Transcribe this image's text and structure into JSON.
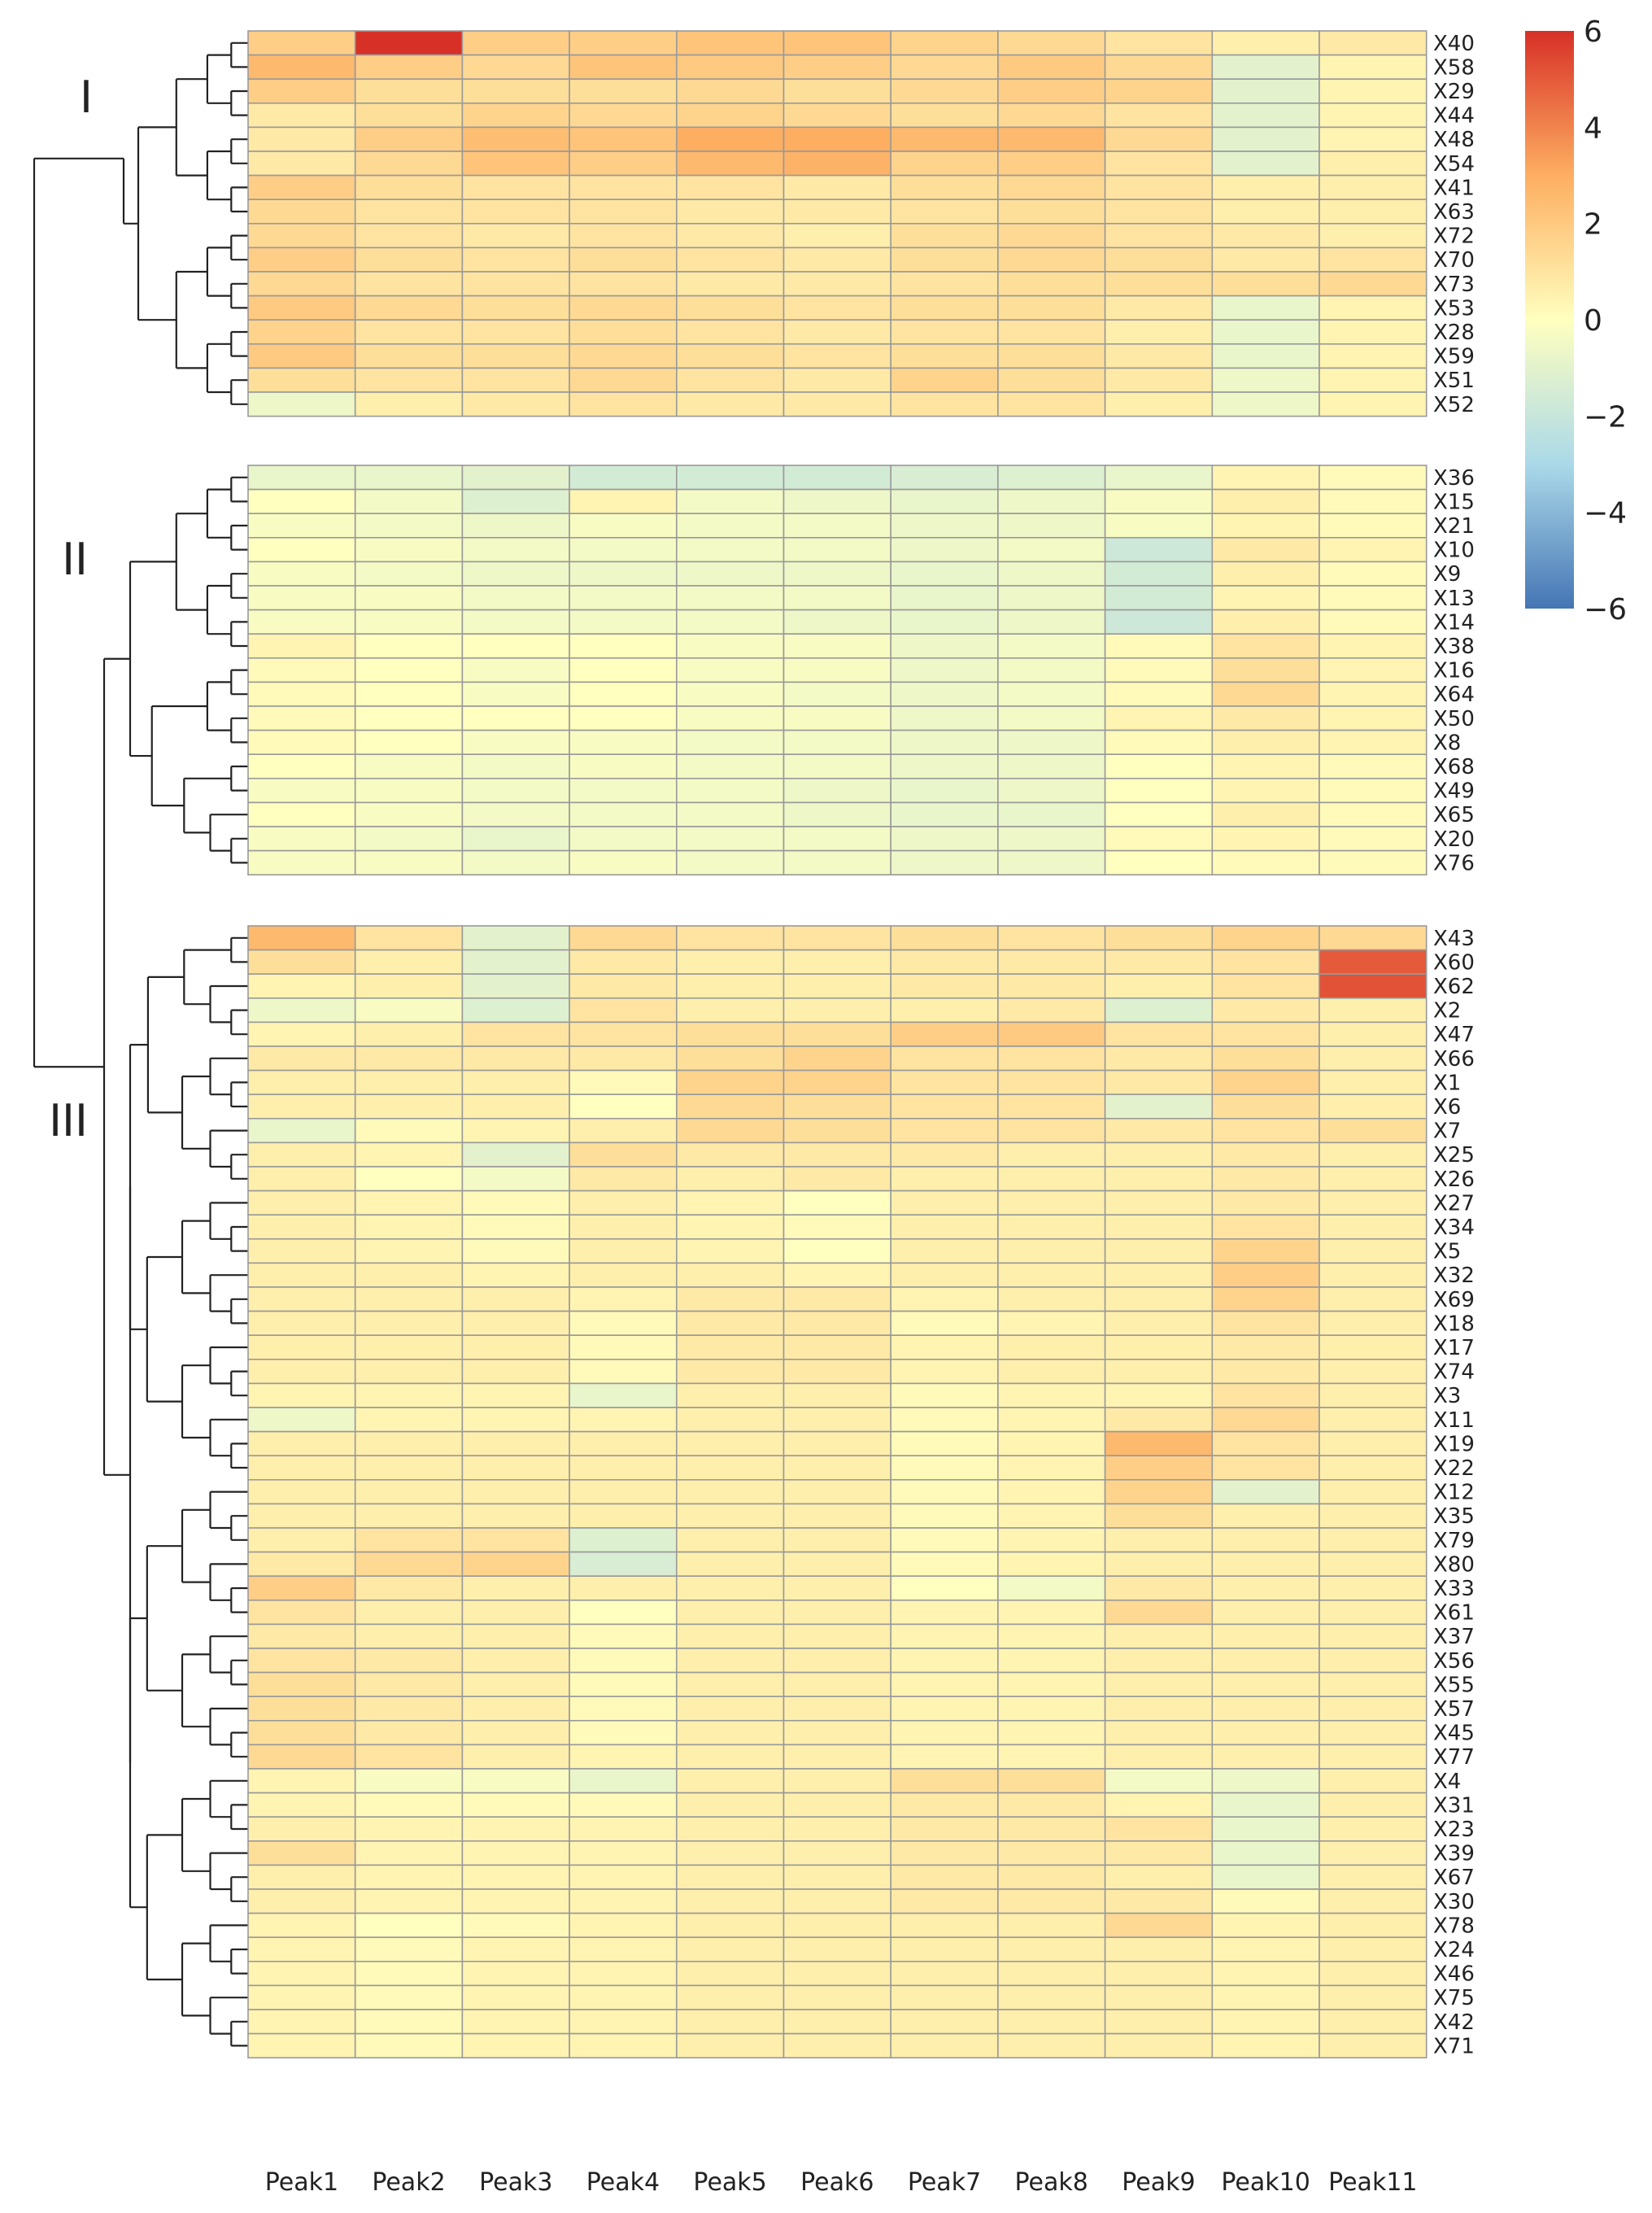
{
  "chart_data": {
    "type": "heatmap",
    "title": "",
    "columns": [
      "Peak1",
      "Peak2",
      "Peak3",
      "Peak4",
      "Peak5",
      "Peak6",
      "Peak7",
      "Peak8",
      "Peak9",
      "Peak10",
      "Peak11"
    ],
    "colorbar": {
      "min": -6,
      "max": 6,
      "ticks": [
        6,
        4,
        2,
        0,
        -2,
        -4,
        -6
      ],
      "tick_labels": [
        "6",
        "4",
        "2",
        "0",
        "−2",
        "−4",
        "−6"
      ]
    },
    "clusters": [
      {
        "label": "I",
        "rows": [
          "X40",
          "X58",
          "X29",
          "X44",
          "X48",
          "X54",
          "X41",
          "X63",
          "X72",
          "X70",
          "X73",
          "X53",
          "X28",
          "X59",
          "X51",
          "X52"
        ],
        "values": [
          [
            1.8,
            6.0,
            1.8,
            1.8,
            2.2,
            2.2,
            1.6,
            1.4,
            1.0,
            0.6,
            0.8
          ],
          [
            2.6,
            1.8,
            1.4,
            2.2,
            2.0,
            1.8,
            1.4,
            2.0,
            1.4,
            -1.0,
            0.4
          ],
          [
            1.8,
            1.2,
            1.2,
            1.2,
            1.4,
            1.2,
            1.4,
            1.8,
            1.6,
            -1.0,
            0.4
          ],
          [
            0.8,
            1.2,
            1.6,
            1.4,
            1.6,
            1.4,
            1.2,
            1.4,
            1.0,
            -1.0,
            0.4
          ],
          [
            0.8,
            1.8,
            2.4,
            2.2,
            3.0,
            3.0,
            2.6,
            2.6,
            1.4,
            -1.0,
            0.4
          ],
          [
            0.8,
            1.4,
            2.2,
            1.8,
            2.6,
            2.8,
            1.6,
            1.8,
            1.0,
            -1.0,
            0.6
          ],
          [
            1.8,
            1.2,
            1.0,
            1.0,
            1.0,
            0.8,
            1.2,
            1.4,
            1.0,
            0.6,
            0.6
          ],
          [
            1.4,
            1.0,
            1.0,
            1.0,
            0.8,
            0.8,
            1.0,
            1.2,
            1.0,
            0.6,
            0.6
          ],
          [
            1.4,
            1.0,
            0.8,
            1.0,
            0.8,
            0.6,
            1.2,
            1.4,
            1.0,
            0.8,
            0.6
          ],
          [
            1.8,
            1.2,
            1.0,
            1.2,
            1.0,
            0.8,
            1.2,
            1.4,
            1.2,
            0.8,
            1.0
          ],
          [
            1.4,
            1.0,
            1.0,
            1.0,
            0.8,
            0.8,
            1.0,
            1.2,
            1.2,
            1.2,
            1.4
          ],
          [
            2.0,
            1.4,
            1.2,
            1.4,
            1.2,
            1.0,
            1.2,
            1.2,
            0.8,
            -0.8,
            0.4
          ],
          [
            1.6,
            1.0,
            1.0,
            1.2,
            1.0,
            0.8,
            1.0,
            1.0,
            0.6,
            -0.8,
            0.4
          ],
          [
            2.0,
            1.2,
            1.2,
            1.4,
            1.2,
            1.0,
            1.2,
            1.2,
            0.8,
            -0.8,
            0.4
          ],
          [
            1.2,
            1.0,
            1.0,
            1.4,
            1.0,
            0.8,
            1.6,
            1.2,
            0.8,
            -0.6,
            0.4
          ],
          [
            -0.6,
            0.6,
            0.8,
            1.0,
            0.8,
            0.8,
            1.0,
            1.0,
            0.6,
            -0.6,
            0.4
          ]
        ]
      },
      {
        "label": "II",
        "rows": [
          "X36",
          "X15",
          "X21",
          "X10",
          "X9",
          "X13",
          "X14",
          "X38",
          "X16",
          "X64",
          "X50",
          "X8",
          "X68",
          "X49",
          "X65",
          "X20",
          "X76"
        ],
        "values": [
          [
            -0.8,
            -0.8,
            -1.0,
            -1.6,
            -1.6,
            -1.6,
            -1.4,
            -1.2,
            -0.8,
            0.4,
            0.2
          ],
          [
            0.0,
            -0.4,
            -1.2,
            0.4,
            -0.4,
            -0.6,
            -0.8,
            -0.6,
            -0.2,
            0.6,
            0.2
          ],
          [
            -0.2,
            -0.4,
            -0.6,
            -0.2,
            -0.4,
            -0.4,
            -0.6,
            -0.6,
            -0.2,
            0.4,
            0.2
          ],
          [
            0.0,
            -0.2,
            -0.4,
            -0.4,
            -0.4,
            -0.4,
            -0.6,
            -0.4,
            -1.8,
            0.8,
            0.4
          ],
          [
            -0.2,
            -0.4,
            -0.6,
            -0.6,
            -0.6,
            -0.6,
            -0.8,
            -0.6,
            -1.6,
            0.6,
            0.2
          ],
          [
            -0.2,
            -0.2,
            -0.4,
            -0.4,
            -0.4,
            -0.4,
            -0.8,
            -0.6,
            -1.6,
            0.4,
            0.2
          ],
          [
            -0.2,
            -0.2,
            -0.4,
            -0.4,
            -0.4,
            -0.6,
            -0.8,
            -0.6,
            -1.8,
            0.6,
            0.2
          ],
          [
            0.4,
            0.0,
            0.0,
            0.0,
            -0.2,
            -0.2,
            -0.6,
            -0.4,
            0.2,
            1.0,
            0.4
          ],
          [
            0.2,
            0.0,
            -0.2,
            0.0,
            -0.2,
            -0.2,
            -0.6,
            -0.4,
            0.2,
            1.2,
            0.4
          ],
          [
            0.2,
            0.0,
            -0.2,
            0.0,
            -0.2,
            -0.4,
            -0.6,
            -0.4,
            0.2,
            1.4,
            0.4
          ],
          [
            0.2,
            0.0,
            0.0,
            0.0,
            -0.2,
            -0.2,
            -0.6,
            -0.4,
            0.4,
            0.8,
            0.4
          ],
          [
            0.2,
            0.0,
            -0.2,
            -0.2,
            -0.4,
            -0.4,
            -0.6,
            -0.6,
            0.2,
            0.6,
            0.4
          ],
          [
            0.0,
            -0.2,
            -0.4,
            -0.2,
            -0.4,
            -0.4,
            -0.6,
            -0.6,
            0.0,
            0.4,
            0.2
          ],
          [
            -0.2,
            -0.2,
            -0.4,
            -0.4,
            -0.4,
            -0.6,
            -0.8,
            -0.6,
            0.0,
            0.4,
            0.2
          ],
          [
            0.0,
            -0.2,
            -0.4,
            -0.4,
            -0.4,
            -0.6,
            -0.8,
            -0.8,
            0.0,
            0.6,
            0.2
          ],
          [
            -0.2,
            -0.4,
            -0.8,
            -0.4,
            -0.4,
            -0.4,
            -0.6,
            -0.6,
            0.2,
            0.4,
            0.2
          ],
          [
            -0.2,
            -0.2,
            -0.4,
            -0.2,
            -0.4,
            -0.4,
            -0.6,
            -0.6,
            0.0,
            0.2,
            0.2
          ]
        ]
      },
      {
        "label": "III",
        "rows": [
          "X43",
          "X60",
          "X62",
          "X2",
          "X47",
          "X66",
          "X1",
          "X6",
          "X7",
          "X25",
          "X26",
          "X27",
          "X34",
          "X5",
          "X32",
          "X69",
          "X18",
          "X17",
          "X74",
          "X3",
          "X11",
          "X19",
          "X22",
          "X12",
          "X35",
          "X79",
          "X80",
          "X33",
          "X61",
          "X37",
          "X56",
          "X55",
          "X57",
          "X45",
          "X77",
          "X4",
          "X31",
          "X23",
          "X39",
          "X67",
          "X30",
          "X78",
          "X24",
          "X46",
          "X75",
          "X42",
          "X71"
        ],
        "values": [
          [
            2.6,
            1.0,
            -1.0,
            1.4,
            1.0,
            1.0,
            1.2,
            1.0,
            1.2,
            1.6,
            1.4
          ],
          [
            1.2,
            0.6,
            -1.0,
            0.8,
            0.6,
            0.6,
            0.8,
            0.8,
            0.8,
            1.0,
            5.0
          ],
          [
            0.4,
            0.6,
            -1.0,
            0.8,
            0.6,
            0.6,
            0.8,
            0.8,
            0.6,
            1.0,
            5.2
          ],
          [
            -0.6,
            -0.2,
            -1.2,
            1.0,
            0.6,
            0.6,
            0.6,
            0.8,
            -1.2,
            0.8,
            0.6
          ],
          [
            0.4,
            0.6,
            1.0,
            1.0,
            1.2,
            1.2,
            1.8,
            2.0,
            1.0,
            1.0,
            0.6
          ],
          [
            0.8,
            0.8,
            0.8,
            0.8,
            1.2,
            1.6,
            1.0,
            1.0,
            0.8,
            1.2,
            0.6
          ],
          [
            0.6,
            0.6,
            0.6,
            0.2,
            1.6,
            1.6,
            1.0,
            1.0,
            0.8,
            1.6,
            0.6
          ],
          [
            0.6,
            0.6,
            0.6,
            0.0,
            1.4,
            1.2,
            1.0,
            1.0,
            -1.0,
            1.2,
            0.6
          ],
          [
            -0.8,
            0.2,
            0.4,
            0.6,
            1.4,
            1.2,
            1.0,
            1.0,
            0.8,
            1.0,
            1.2
          ],
          [
            0.6,
            0.4,
            -1.0,
            1.2,
            0.8,
            0.8,
            0.8,
            0.6,
            0.6,
            0.8,
            0.6
          ],
          [
            0.6,
            0.0,
            -0.4,
            0.8,
            0.6,
            0.8,
            0.6,
            0.6,
            0.6,
            0.8,
            0.6
          ],
          [
            0.6,
            0.4,
            0.2,
            0.6,
            0.4,
            0.0,
            0.6,
            0.6,
            0.6,
            0.8,
            0.6
          ],
          [
            0.6,
            0.4,
            0.2,
            0.6,
            0.4,
            0.2,
            0.6,
            0.6,
            0.6,
            1.0,
            0.6
          ],
          [
            0.6,
            0.4,
            0.2,
            0.6,
            0.4,
            0.0,
            0.6,
            0.6,
            0.6,
            1.6,
            0.6
          ],
          [
            0.6,
            0.6,
            0.4,
            0.6,
            0.6,
            0.4,
            0.6,
            0.6,
            0.6,
            1.8,
            0.6
          ],
          [
            0.6,
            0.6,
            0.6,
            0.4,
            0.8,
            0.8,
            0.4,
            0.6,
            0.6,
            1.6,
            0.6
          ],
          [
            0.6,
            0.6,
            0.6,
            0.2,
            0.8,
            0.8,
            0.2,
            0.4,
            0.6,
            1.0,
            0.6
          ],
          [
            0.6,
            0.6,
            0.6,
            0.2,
            0.8,
            0.8,
            0.4,
            0.6,
            0.6,
            0.8,
            0.6
          ],
          [
            0.6,
            0.6,
            0.6,
            0.2,
            0.8,
            0.8,
            0.4,
            0.6,
            0.6,
            0.8,
            0.6
          ],
          [
            0.4,
            0.4,
            0.4,
            -0.8,
            0.6,
            0.6,
            0.2,
            0.4,
            0.4,
            1.0,
            0.6
          ],
          [
            -0.6,
            0.4,
            0.4,
            0.4,
            0.6,
            0.6,
            0.2,
            0.4,
            0.8,
            1.4,
            0.6
          ],
          [
            0.6,
            0.6,
            0.6,
            0.6,
            0.6,
            0.6,
            0.2,
            0.4,
            2.6,
            1.0,
            0.6
          ],
          [
            0.6,
            0.6,
            0.6,
            0.6,
            0.6,
            0.6,
            0.2,
            0.4,
            1.8,
            1.0,
            0.6
          ],
          [
            0.6,
            0.6,
            0.6,
            0.6,
            0.6,
            0.6,
            0.2,
            0.4,
            1.6,
            -1.0,
            0.6
          ],
          [
            0.6,
            0.6,
            0.6,
            0.6,
            0.6,
            0.6,
            0.2,
            0.4,
            1.2,
            0.6,
            0.6
          ],
          [
            0.6,
            1.0,
            1.0,
            -1.2,
            0.6,
            0.6,
            0.2,
            0.4,
            0.6,
            0.6,
            0.6
          ],
          [
            0.8,
            1.4,
            1.6,
            -1.4,
            0.6,
            0.6,
            0.2,
            0.4,
            0.6,
            0.6,
            0.6
          ],
          [
            1.8,
            0.8,
            0.6,
            0.6,
            0.6,
            0.6,
            0.0,
            -0.4,
            0.8,
            0.6,
            0.6
          ],
          [
            1.0,
            0.6,
            0.6,
            0.0,
            0.6,
            0.6,
            0.4,
            0.4,
            1.4,
            0.6,
            0.6
          ],
          [
            0.8,
            0.6,
            0.6,
            0.2,
            0.6,
            0.6,
            0.4,
            0.4,
            0.6,
            0.6,
            0.6
          ],
          [
            1.0,
            0.8,
            0.6,
            0.2,
            0.6,
            0.6,
            0.4,
            0.4,
            0.6,
            0.6,
            0.6
          ],
          [
            1.2,
            0.8,
            0.6,
            0.2,
            0.6,
            0.6,
            0.4,
            0.4,
            0.6,
            0.6,
            0.6
          ],
          [
            1.2,
            0.8,
            0.6,
            0.2,
            0.6,
            0.6,
            0.4,
            0.4,
            0.6,
            0.6,
            0.6
          ],
          [
            1.2,
            0.8,
            0.6,
            0.2,
            0.6,
            0.6,
            0.4,
            0.4,
            0.6,
            0.6,
            0.6
          ],
          [
            1.4,
            1.0,
            0.6,
            0.4,
            0.6,
            0.6,
            0.4,
            0.4,
            0.6,
            0.6,
            0.6
          ],
          [
            0.4,
            -0.2,
            -0.2,
            -0.8,
            0.6,
            0.6,
            1.2,
            1.2,
            -0.4,
            -0.6,
            0.6
          ],
          [
            0.4,
            0.2,
            0.2,
            0.2,
            0.6,
            0.6,
            0.8,
            0.8,
            0.4,
            -0.8,
            0.6
          ],
          [
            0.6,
            0.4,
            0.4,
            0.4,
            0.6,
            0.6,
            0.8,
            0.8,
            1.0,
            -0.8,
            0.6
          ],
          [
            1.2,
            0.4,
            0.4,
            0.4,
            0.6,
            0.6,
            0.8,
            0.8,
            0.8,
            -0.8,
            0.6
          ],
          [
            0.6,
            0.4,
            0.4,
            0.4,
            0.6,
            0.6,
            0.8,
            0.8,
            0.6,
            -0.8,
            0.6
          ],
          [
            0.6,
            0.4,
            0.4,
            0.4,
            0.6,
            0.6,
            0.8,
            0.8,
            0.8,
            0.2,
            0.6
          ],
          [
            0.4,
            0.0,
            0.2,
            0.4,
            0.6,
            0.6,
            0.6,
            0.6,
            1.4,
            0.4,
            0.6
          ],
          [
            0.4,
            0.2,
            0.4,
            0.4,
            0.6,
            0.6,
            0.6,
            0.6,
            0.6,
            0.4,
            0.6
          ],
          [
            0.4,
            0.2,
            0.4,
            0.4,
            0.6,
            0.6,
            0.6,
            0.6,
            0.6,
            0.4,
            0.6
          ],
          [
            0.4,
            0.2,
            0.4,
            0.4,
            0.6,
            0.6,
            0.6,
            0.6,
            0.6,
            0.4,
            0.6
          ],
          [
            0.4,
            0.2,
            0.4,
            0.4,
            0.6,
            0.6,
            0.6,
            0.6,
            0.6,
            0.4,
            0.6
          ],
          [
            0.4,
            0.2,
            0.4,
            0.4,
            0.6,
            0.6,
            0.6,
            0.6,
            0.6,
            0.4,
            0.6
          ]
        ]
      }
    ]
  },
  "colors": {
    "high": "#d73027",
    "mid_high": "#fdae61",
    "mid": "#ffffbf",
    "mid_low": "#abd9e9",
    "low": "#4575b4",
    "grid": "#999999",
    "dendrogram": "#222222"
  }
}
